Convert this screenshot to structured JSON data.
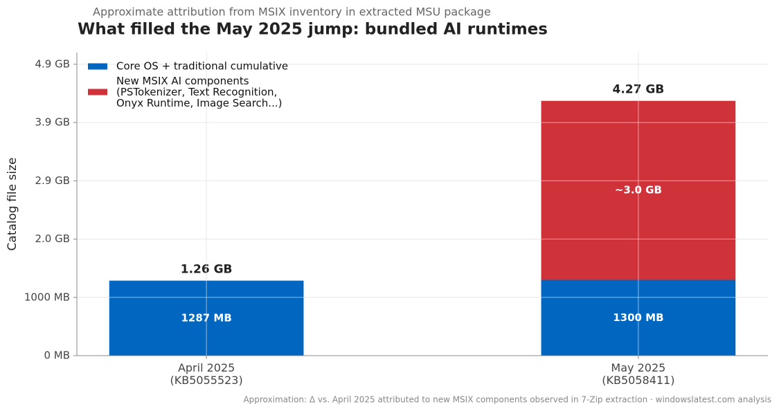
{
  "chart_data": {
    "type": "stacked_bar",
    "subtitle": "Approximate attribution from MSIX inventory in extracted MSU package",
    "title": "What filled the May 2025 jump: bundled AI runtimes",
    "y_label": "Catalog file size",
    "categories": [
      "April 2025\n(KB5055523)",
      "May 2025\n(KB5058411)"
    ],
    "series": [
      {
        "name": "Core OS + traditional cumulative",
        "color": "#0066c0",
        "values": [
          1287,
          1300
        ],
        "value_labels": [
          "1287 MB",
          "1300 MB"
        ]
      },
      {
        "name": "New MSIX AI components\n(PSTokenizer, Text Recognition,\nOnyx Runtime, Image Search...)",
        "color": "#d0323a",
        "values": [
          null,
          3072
        ],
        "value_labels": [
          null,
          "~3.0 GB"
        ]
      }
    ],
    "totals": {
      "values": [
        1287,
        4372
      ],
      "value_labels": [
        "1.26 GB",
        "4.27 GB"
      ]
    },
    "ylim": [
      0,
      5200
    ],
    "yticks": [
      {
        "value": 0,
        "label": "0 MB"
      },
      {
        "value": 1000,
        "label": "1000 MB"
      },
      {
        "value": 2000,
        "label": "2.0 GB"
      },
      {
        "value": 3000,
        "label": "2.9 GB"
      },
      {
        "value": 4000,
        "label": "3.9 GB"
      },
      {
        "value": 5000,
        "label": "4.9 GB"
      }
    ],
    "grid": true,
    "legend": "upper left",
    "footnote": "Approximation: Δ vs. April 2025 attributed to new MSIX components observed in 7-Zip extraction · windowslatest.com analysis"
  }
}
